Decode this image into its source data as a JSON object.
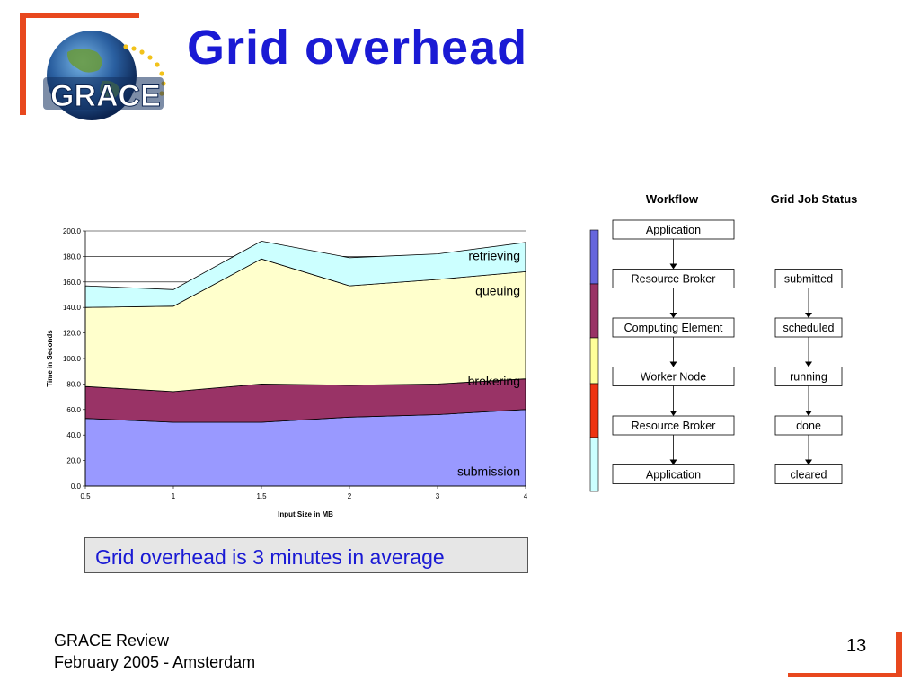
{
  "slide": {
    "title": "Grid overhead",
    "logo_text": "GRACE",
    "callout": "Grid overhead is 3 minutes in average",
    "footer_line1": "GRACE Review",
    "footer_line2": "February 2005 - Amsterdam",
    "page_number": "13",
    "accent_color": "#e8481e",
    "title_color": "#1a1ad4"
  },
  "chart_data": {
    "type": "area",
    "stacked": true,
    "x": [
      0.5,
      1,
      1.5,
      2,
      3,
      4
    ],
    "x_ticks": [
      "0.5",
      "1",
      "1.5",
      "2",
      "3",
      "4"
    ],
    "xlabel": "Input Size in MB",
    "ylabel": "Time in Seconds",
    "ylim": [
      0,
      200
    ],
    "y_ticks": [
      "0.0",
      "20.0",
      "40.0",
      "60.0",
      "80.0",
      "100.0",
      "120.0",
      "140.0",
      "160.0",
      "180.0",
      "200.0"
    ],
    "grid": "horizontal",
    "series": [
      {
        "name": "submission",
        "color": "#9999ff",
        "values": [
          53,
          50,
          50,
          54,
          56,
          60
        ]
      },
      {
        "name": "brokering",
        "color": "#993366",
        "values": [
          25,
          24,
          30,
          25,
          24,
          24
        ]
      },
      {
        "name": "queuing",
        "color": "#ffffcc",
        "values": [
          62,
          67,
          98,
          78,
          82,
          84
        ]
      },
      {
        "name": "retrieving",
        "color": "#ccffff",
        "values": [
          17,
          13,
          14,
          22,
          20,
          23
        ]
      }
    ]
  },
  "diagram": {
    "workflow_header": "Workflow",
    "status_header": "Grid Job Status",
    "workflow": [
      "Application",
      "Resource Broker",
      "Computing Element",
      "Worker Node",
      "Resource Broker",
      "Application"
    ],
    "status": [
      "submitted",
      "scheduled",
      "running",
      "done",
      "cleared"
    ],
    "status_bar_colors": [
      "#6666dd",
      "#993366",
      "#ffff99",
      "#ee3311",
      "#ccffff"
    ]
  }
}
